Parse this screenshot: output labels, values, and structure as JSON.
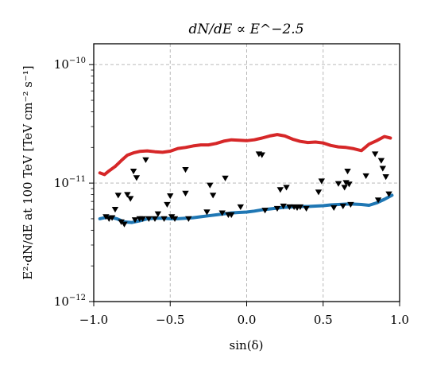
{
  "chart_data": {
    "type": "line",
    "title": "dN/dE ∝ E^−2.5",
    "xlabel": "sin(δ)",
    "ylabel": "E²·dN/dE at 100 TeV  [TeV cm⁻² s⁻¹]",
    "xlim": [
      -1.0,
      1.0
    ],
    "ylim": [
      1e-12,
      1.5e-10
    ],
    "yscale": "log",
    "grid": true,
    "legend": "none",
    "x_ticks": [
      "−1.0",
      "−0.5",
      "0.0",
      "0.5",
      "1.0"
    ],
    "x_tick_values": [
      -1.0,
      -0.5,
      0.0,
      0.5,
      1.0
    ],
    "y_ticks": [
      "10−12",
      "10−11",
      "10−10"
    ],
    "y_tick_values": [
      1e-12,
      1e-11,
      1e-10
    ],
    "colors": {
      "red_curve": "#d62728",
      "blue_curve": "#1f77b4",
      "markers": "#000000",
      "grid": "#b0b0b0"
    },
    "series": [
      {
        "color": "#d62728",
        "x": [
          -0.96,
          -0.93,
          -0.9,
          -0.86,
          -0.82,
          -0.78,
          -0.74,
          -0.7,
          -0.65,
          -0.6,
          -0.55,
          -0.5,
          -0.45,
          -0.4,
          -0.35,
          -0.3,
          -0.25,
          -0.2,
          -0.15,
          -0.1,
          -0.05,
          0.0,
          0.05,
          0.1,
          0.15,
          0.2,
          0.25,
          0.3,
          0.35,
          0.4,
          0.45,
          0.5,
          0.55,
          0.6,
          0.65,
          0.7,
          0.75,
          0.8,
          0.85,
          0.9,
          0.94
        ],
        "y": [
          1.22e-11,
          1.18e-11,
          1.27e-11,
          1.38e-11,
          1.55e-11,
          1.72e-11,
          1.8e-11,
          1.85e-11,
          1.87e-11,
          1.84e-11,
          1.82e-11,
          1.86e-11,
          1.96e-11,
          2e-11,
          2.06e-11,
          2.1e-11,
          2.1e-11,
          2.16e-11,
          2.26e-11,
          2.32e-11,
          2.3e-11,
          2.28e-11,
          2.32e-11,
          2.4e-11,
          2.5e-11,
          2.57e-11,
          2.5e-11,
          2.35e-11,
          2.25e-11,
          2.2e-11,
          2.22e-11,
          2.18e-11,
          2.08e-11,
          2.02e-11,
          2e-11,
          1.95e-11,
          1.88e-11,
          2.13e-11,
          2.28e-11,
          2.47e-11,
          2.4e-11
        ]
      },
      {
        "color": "#1f77b4",
        "x": [
          -0.96,
          -0.9,
          -0.85,
          -0.8,
          -0.75,
          -0.7,
          -0.65,
          -0.6,
          -0.55,
          -0.5,
          -0.45,
          -0.4,
          -0.35,
          -0.3,
          -0.25,
          -0.2,
          -0.15,
          -0.1,
          -0.05,
          0.0,
          0.05,
          0.1,
          0.15,
          0.2,
          0.25,
          0.3,
          0.35,
          0.4,
          0.45,
          0.5,
          0.55,
          0.6,
          0.65,
          0.7,
          0.75,
          0.8,
          0.85,
          0.9,
          0.95
        ],
        "y": [
          5e-12,
          5.2e-12,
          5e-12,
          4.7e-12,
          4.65e-12,
          4.8e-12,
          5e-12,
          5.05e-12,
          5.05e-12,
          5e-12,
          5e-12,
          5.05e-12,
          5.1e-12,
          5.2e-12,
          5.3e-12,
          5.4e-12,
          5.5e-12,
          5.6e-12,
          5.65e-12,
          5.7e-12,
          5.8e-12,
          5.95e-12,
          6.05e-12,
          6.15e-12,
          6.25e-12,
          6.3e-12,
          6.35e-12,
          6.35e-12,
          6.4e-12,
          6.45e-12,
          6.55e-12,
          6.6e-12,
          6.65e-12,
          6.65e-12,
          6.6e-12,
          6.5e-12,
          6.8e-12,
          7.3e-12,
          7.9e-12
        ]
      }
    ],
    "markers": {
      "symbol": "downward-triangle",
      "x": [
        -0.92,
        -0.9,
        -0.88,
        -0.86,
        -0.84,
        -0.82,
        -0.8,
        -0.78,
        -0.76,
        -0.74,
        -0.73,
        -0.72,
        -0.7,
        -0.68,
        -0.66,
        -0.64,
        -0.6,
        -0.58,
        -0.54,
        -0.52,
        -0.5,
        -0.49,
        -0.47,
        -0.4,
        -0.4,
        -0.38,
        -0.26,
        -0.24,
        -0.22,
        -0.16,
        -0.14,
        -0.12,
        -0.1,
        -0.04,
        0.08,
        0.1,
        0.12,
        0.2,
        0.22,
        0.24,
        0.26,
        0.28,
        0.31,
        0.33,
        0.35,
        0.39,
        0.47,
        0.49,
        0.57,
        0.6,
        0.63,
        0.64,
        0.65,
        0.66,
        0.67,
        0.68,
        0.78,
        0.84,
        0.86,
        0.88,
        0.89,
        0.91,
        0.93
      ],
      "y": [
        5.2e-12,
        5e-12,
        5.1e-12,
        6e-12,
        7.9e-12,
        4.7e-12,
        4.5e-12,
        8e-12,
        7.4e-12,
        1.26e-11,
        4.9e-12,
        1.11e-11,
        5e-12,
        5e-12,
        1.57e-11,
        5e-12,
        5e-12,
        5.5e-12,
        5e-12,
        6.6e-12,
        7.8e-12,
        5.2e-12,
        5e-12,
        1.3e-11,
        8.2e-12,
        5e-12,
        5.7e-12,
        9.6e-12,
        7.9e-12,
        5.6e-12,
        1.1e-11,
        5.4e-12,
        5.4e-12,
        6.3e-12,
        1.76e-11,
        1.73e-11,
        5.9e-12,
        6.1e-12,
        8.8e-12,
        6.4e-12,
        9.2e-12,
        6.3e-12,
        6.3e-12,
        6.2e-12,
        6.3e-12,
        6.1e-12,
        8.4e-12,
        1.04e-11,
        6.2e-12,
        9.9e-12,
        6.4e-12,
        9.2e-12,
        1.01e-11,
        1.26e-11,
        9.8e-12,
        6.6e-12,
        1.15e-11,
        1.76e-11,
        7.2e-12,
        1.55e-11,
        1.33e-11,
        1.13e-11,
        8.1e-12
      ]
    }
  }
}
